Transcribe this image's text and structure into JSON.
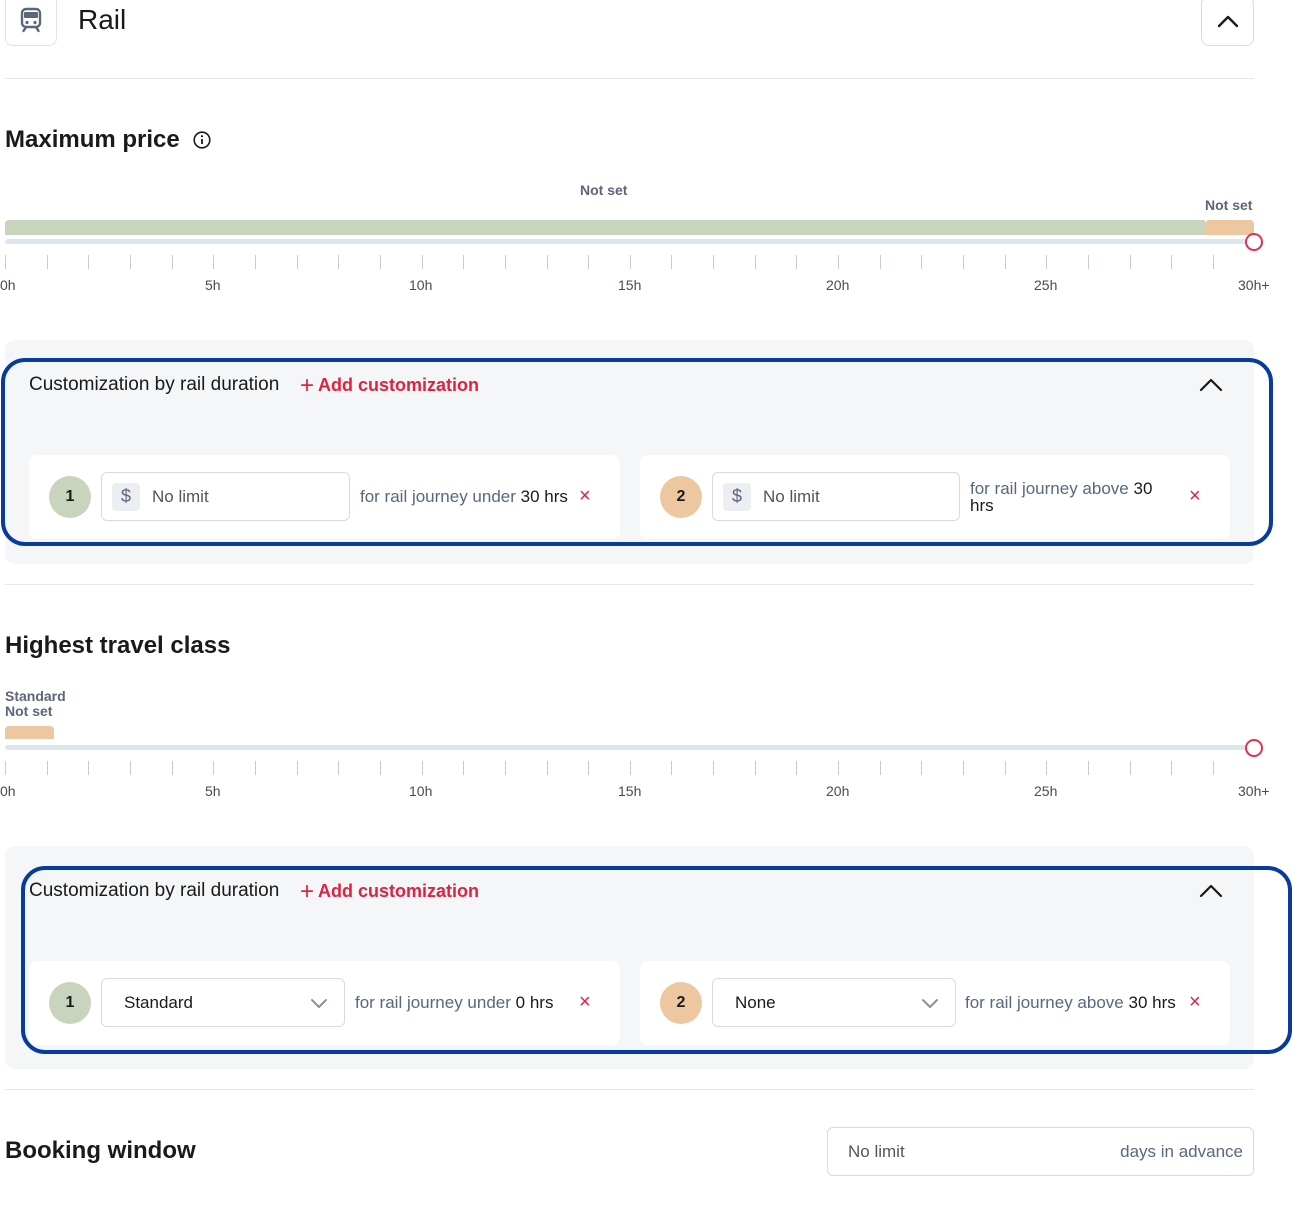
{
  "header": {
    "title": "Rail",
    "icon": "train-icon"
  },
  "max_price": {
    "title": "Maximum price",
    "bar_label_1": "Not set",
    "bar_label_2": "Not set",
    "ticks": [
      "0h",
      "5h",
      "10h",
      "15h",
      "20h",
      "25h",
      "30h+"
    ],
    "customization": {
      "title": "Customization by rail duration",
      "add_label": "Add customization",
      "rules": [
        {
          "number": "1",
          "currency": "$",
          "placeholder": "No limit",
          "condition_text": "for rail journey under",
          "value": "30 hrs"
        },
        {
          "number": "2",
          "currency": "$",
          "placeholder": "No limit",
          "condition_text": "for rail journey above",
          "value": "30",
          "value_suffix": "hrs"
        }
      ]
    }
  },
  "travel_class": {
    "title": "Highest travel class",
    "bar_label_top": "Standard",
    "bar_label_bottom": "Not set",
    "ticks": [
      "0h",
      "5h",
      "10h",
      "15h",
      "20h",
      "25h",
      "30h+"
    ],
    "customization": {
      "title": "Customization by rail duration",
      "add_label": "Add customization",
      "rules": [
        {
          "number": "1",
          "selected": "Standard",
          "condition_text": "for rail journey under",
          "value": "0 hrs"
        },
        {
          "number": "2",
          "selected": "None",
          "condition_text": "for rail journey above",
          "value": "30 hrs"
        }
      ]
    }
  },
  "booking_window": {
    "title": "Booking window",
    "value": "No limit",
    "suffix": "days in advance"
  },
  "colors": {
    "accent_red": "#e0213f",
    "highlight_blue": "#083c9c",
    "green_segment": "#c9d4bd",
    "orange_segment": "#edc79f"
  }
}
